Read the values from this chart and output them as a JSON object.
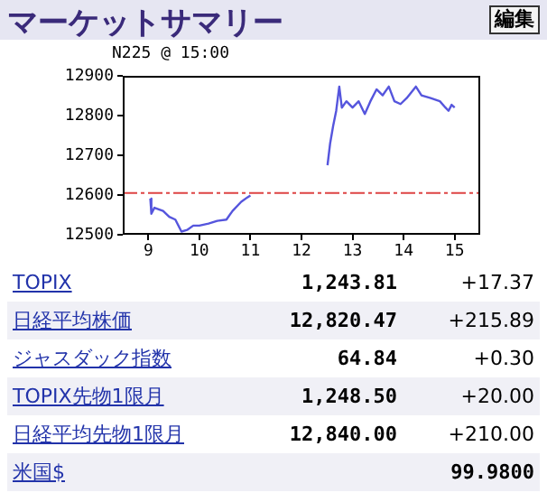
{
  "chart_data": [
    {
      "type": "line",
      "title": "マーケットサマリー",
      "annotations": [
        "編集",
        "N225 @ 15:00"
      ],
      "color": "#5555dd",
      "legend": false,
      "grid": false,
      "marker": "none",
      "line_style": "solid",
      "x": [
        9.04,
        9.06,
        9.12,
        9.29,
        9.41,
        9.53,
        9.65,
        9.76,
        9.88,
        10.0,
        10.18,
        10.35,
        10.53,
        10.65,
        10.82,
        10.94,
        11.0,
        11.75,
        12.51,
        12.56,
        12.62,
        12.68,
        12.74,
        12.79,
        12.88,
        13.0,
        13.12,
        13.24,
        13.35,
        13.47,
        13.59,
        13.71,
        13.82,
        13.94,
        14.06,
        14.24,
        14.35,
        14.53,
        14.71,
        14.82,
        14.88,
        14.94,
        15.0
      ],
      "values": [
        12591,
        12553,
        12568,
        12560,
        12545,
        12538,
        12508,
        12512,
        12523,
        12523,
        12528,
        12535,
        12538,
        12560,
        12583,
        12594,
        12599,
        null,
        12675,
        12729,
        12774,
        12812,
        12873,
        12820,
        12836,
        12820,
        12836,
        12804,
        12836,
        12866,
        12851,
        12873,
        12836,
        12829,
        12844,
        12873,
        12851,
        12844,
        12836,
        12820,
        12812,
        12827,
        12820
      ],
      "xlim": [
        8.5,
        15.5
      ],
      "xticks": [
        9,
        10,
        11,
        12,
        13,
        14,
        15
      ],
      "ylim": [
        12500,
        12900
      ],
      "yticks": [
        12500,
        12600,
        12700,
        12800,
        12900
      ],
      "ref_lines": [
        {
          "axis": "y",
          "value": 12605,
          "color": "#dd4444",
          "line_style": "dashdot"
        }
      ]
    },
    {
      "type": "other",
      "categories": [
        "TOPIX",
        "日経平均株価",
        "ジャスダック指数",
        "TOPIX先物1限月",
        "日経平均先物1限月",
        "米国$"
      ],
      "annotations": [
        "1,243.81",
        "+17.37",
        "12,820.47",
        "+215.89",
        "64.84",
        "+0.30",
        "1,248.50",
        "+20.00",
        "12,840.00",
        "+210.00",
        "99.9800"
      ]
    }
  ]
}
